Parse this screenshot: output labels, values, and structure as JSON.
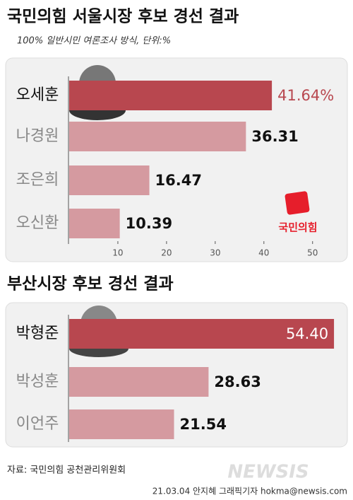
{
  "chart_data": [
    {
      "type": "bar",
      "orientation": "horizontal",
      "title": "국민의힘 서울시장 후보 경선 결과",
      "subtitle": "100% 일반시민 여론조사 방식, 단위:%",
      "categories": [
        "오세훈",
        "나경원",
        "조은희",
        "오신환"
      ],
      "values": [
        41.64,
        36.31,
        16.47,
        10.39
      ],
      "value_labels": [
        "41.64%",
        "36.31",
        "16.47",
        "10.39"
      ],
      "colors": [
        "#b8474f",
        "#d59aa0",
        "#d59aa0",
        "#d59aa0"
      ],
      "xlim": [
        0,
        57
      ],
      "xticks": [
        10,
        20,
        30,
        40,
        50
      ],
      "party_logo": "국민의힘"
    },
    {
      "type": "bar",
      "orientation": "horizontal",
      "title": "부산시장 후보 경선 결과",
      "categories": [
        "박형준",
        "박성훈",
        "이언주"
      ],
      "values": [
        54.4,
        28.63,
        21.54
      ],
      "value_labels": [
        "54.40",
        "28.63",
        "21.54"
      ],
      "colors": [
        "#b8474f",
        "#d59aa0",
        "#d59aa0"
      ],
      "xlim": [
        0,
        57
      ]
    }
  ],
  "source": "자료: 국민의힘 공천관리위원회",
  "credit": "21.03.04 안지혜 그래픽기자 hokma@newsis.com",
  "watermark": "NEWSIS"
}
